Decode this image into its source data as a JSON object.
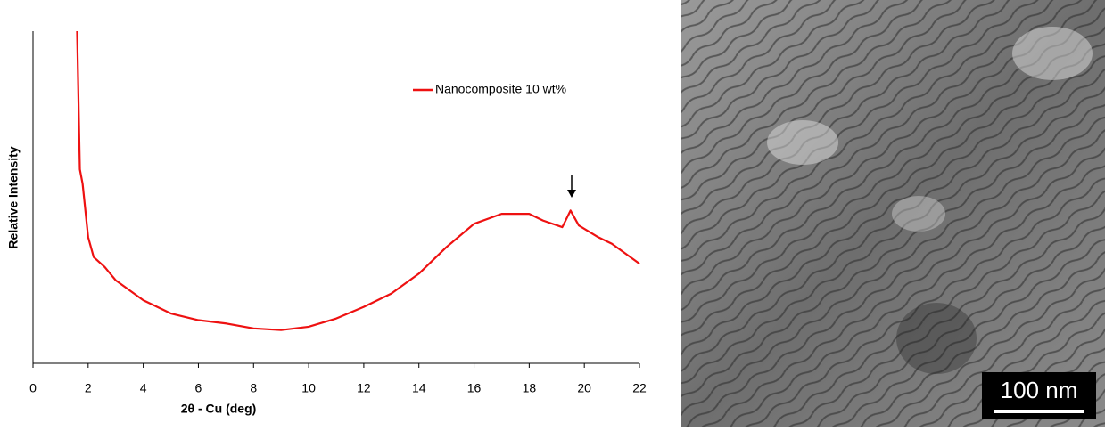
{
  "chart_data": {
    "type": "line",
    "x_label": "2θ - Cu (deg)",
    "y_label": "Relative Intensity",
    "x": [
      1.6,
      1.7,
      1.8,
      2.0,
      2.2,
      2.6,
      3,
      4,
      5,
      6,
      7,
      8,
      9,
      10,
      11,
      12,
      13,
      14,
      15,
      16,
      17,
      18,
      18.5,
      19.2,
      19.5,
      19.8,
      20.5,
      21,
      22
    ],
    "series": [
      {
        "name": "Nanocomposite 10 wt%",
        "color": "#ee1111",
        "values": [
          100,
          58.4,
          54,
          38,
          32,
          29,
          25,
          19,
          15,
          13,
          12,
          10.5,
          10,
          11,
          13.5,
          17,
          21,
          27,
          35,
          42,
          45,
          45,
          43,
          41,
          46,
          41.5,
          38,
          36,
          30
        ]
      }
    ],
    "xlim": [
      0,
      22
    ],
    "xticks": [
      0,
      2,
      4,
      6,
      8,
      10,
      12,
      14,
      16,
      18,
      20,
      22
    ],
    "ylim": [
      0,
      100
    ],
    "grid": false,
    "legend": "upper right"
  },
  "image": {
    "scale_bar": "100 nm"
  }
}
